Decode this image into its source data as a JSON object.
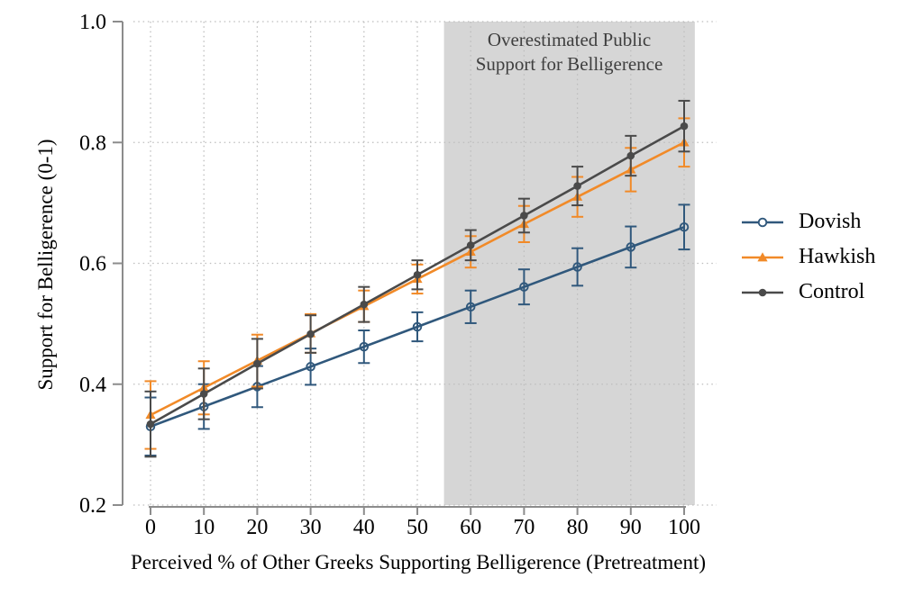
{
  "figure": {
    "annotation": {
      "line1": "Overestimated Public",
      "line2": "Support for Belligerence"
    }
  },
  "colors": {
    "background": "#ffffff",
    "shading": "#d6d6d6",
    "gridline": "#bdbdbd",
    "axis_line": "#8c8c8c",
    "annotation_text": "#3f3f3f",
    "dovish": "#30587c",
    "hawkish": "#f18a28",
    "control": "#4a4a4a"
  },
  "chart_data": {
    "type": "line",
    "title": "",
    "xlabel": "Perceived % of Other Greeks Supporting Belligerence (Pretreatment)",
    "ylabel": "Support for Belligerence (0-1)",
    "x": [
      0,
      10,
      20,
      30,
      40,
      50,
      60,
      70,
      80,
      90,
      100
    ],
    "x_ticks": [
      0,
      10,
      20,
      30,
      40,
      50,
      60,
      70,
      80,
      90,
      100
    ],
    "x_tick_labels": [
      "0",
      "10",
      "20",
      "30",
      "40",
      "50",
      "60",
      "70",
      "80",
      "90",
      "100"
    ],
    "y_ticks": [
      0.2,
      0.4,
      0.6,
      0.8,
      1.0
    ],
    "y_tick_labels": [
      "0.2",
      "0.4",
      "0.6",
      "0.8",
      "1.0"
    ],
    "xlim": [
      -5,
      106
    ],
    "ylim": [
      0.2,
      1.0
    ],
    "grid": "dotted, both axes",
    "legend_position": "right",
    "shaded_region": {
      "x_start": 55,
      "x_end": 102,
      "color": "#d6d6d6",
      "label": "Overestimated Public Support for Belligerence"
    },
    "series": [
      {
        "name": "Dovish",
        "marker": "open-circle",
        "color": "#30587c",
        "values": [
          0.33,
          0.363,
          0.396,
          0.429,
          0.462,
          0.495,
          0.528,
          0.561,
          0.594,
          0.627,
          0.66
        ],
        "ci": [
          0.048,
          0.037,
          0.034,
          0.03,
          0.027,
          0.024,
          0.027,
          0.029,
          0.031,
          0.034,
          0.037
        ]
      },
      {
        "name": "Hawkish",
        "marker": "triangle",
        "color": "#f18a28",
        "values": [
          0.349,
          0.394,
          0.439,
          0.484,
          0.529,
          0.574,
          0.619,
          0.665,
          0.71,
          0.755,
          0.8
        ],
        "ci": [
          0.056,
          0.044,
          0.043,
          0.032,
          0.026,
          0.024,
          0.026,
          0.03,
          0.033,
          0.036,
          0.04
        ]
      },
      {
        "name": "Control",
        "marker": "circle",
        "color": "#4a4a4a",
        "values": [
          0.334,
          0.384,
          0.434,
          0.483,
          0.532,
          0.581,
          0.63,
          0.679,
          0.728,
          0.778,
          0.827
        ],
        "ci": [
          0.054,
          0.042,
          0.041,
          0.031,
          0.029,
          0.024,
          0.025,
          0.028,
          0.032,
          0.033,
          0.042
        ]
      }
    ]
  }
}
